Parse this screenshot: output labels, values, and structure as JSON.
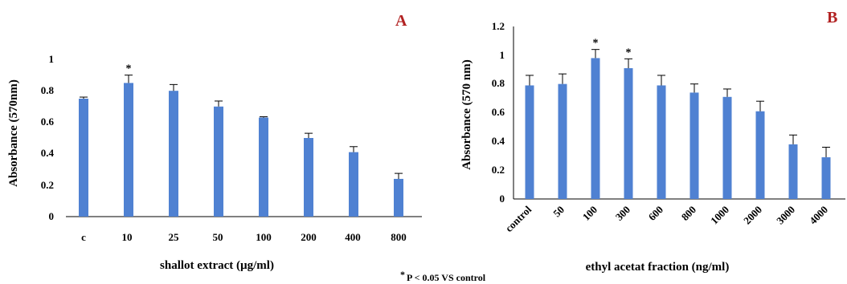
{
  "chart_data": [
    {
      "type": "bar",
      "panel_label": "A",
      "panel_label_color": "#b22222",
      "bar_color": "#4f81d2",
      "xlabel": "shallot extract (µg/ml)",
      "ylabel": "Absorbance (570nm)",
      "ylim": [
        0,
        1
      ],
      "yticks": [
        "0",
        "0.2",
        "0.4",
        "0.6",
        "0.8",
        "1"
      ],
      "categories": [
        "c",
        "10",
        "25",
        "50",
        "100",
        "200",
        "400",
        "800"
      ],
      "values": [
        0.75,
        0.85,
        0.8,
        0.7,
        0.63,
        0.5,
        0.41,
        0.24
      ],
      "errors": [
        0.01,
        0.05,
        0.04,
        0.035,
        0.005,
        0.03,
        0.035,
        0.035
      ],
      "significance": [
        "",
        "*",
        "",
        "",
        "",
        "",
        "",
        ""
      ],
      "grid": false
    },
    {
      "type": "bar",
      "panel_label": "B",
      "panel_label_color": "#b22222",
      "bar_color": "#4f81d2",
      "xlabel": "ethyl acetat fraction (ng/ml)",
      "ylabel": "Absorbance (570 nm)",
      "ylim": [
        0,
        1.2
      ],
      "yticks": [
        "0",
        "0.2",
        "0.4",
        "0.6",
        "0.8",
        "1",
        "1.2"
      ],
      "categories": [
        "control",
        "50",
        "100",
        "300",
        "600",
        "800",
        "1000",
        "2000",
        "3000",
        "4000"
      ],
      "values": [
        0.79,
        0.8,
        0.98,
        0.91,
        0.79,
        0.74,
        0.71,
        0.61,
        0.38,
        0.29
      ],
      "errors": [
        0.07,
        0.07,
        0.06,
        0.065,
        0.07,
        0.06,
        0.055,
        0.07,
        0.065,
        0.07
      ],
      "significance": [
        "",
        "",
        "*",
        "*",
        "",
        "",
        "",
        "",
        "",
        ""
      ],
      "grid": false
    }
  ],
  "footnote": {
    "star": "*",
    "text": "P < 0.05 VS control"
  }
}
